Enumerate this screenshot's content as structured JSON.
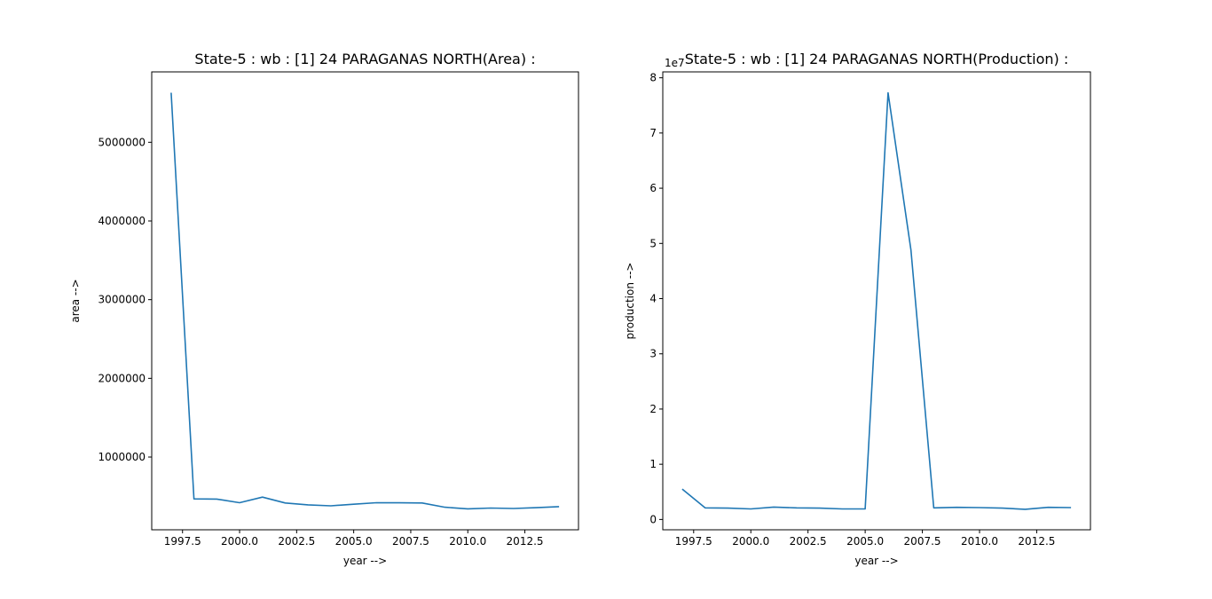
{
  "chart_data": [
    {
      "type": "line",
      "title": "State-5 : wb : [1] 24 PARAGANAS NORTH(Area) :",
      "xlabel": "year -->",
      "ylabel": "area -->",
      "x": [
        1997,
        1998,
        1999,
        2000,
        2001,
        2002,
        2003,
        2004,
        2005,
        2006,
        2007,
        2008,
        2009,
        2010,
        2011,
        2012,
        2013,
        2014
      ],
      "values": [
        5630000,
        468000,
        466000,
        420000,
        490000,
        416000,
        392000,
        380000,
        400000,
        420000,
        418000,
        416000,
        362000,
        342000,
        352000,
        346000,
        356000,
        370000
      ],
      "xlim": [
        1996.15,
        2014.85
      ],
      "ylim": [
        75500,
        5894500
      ],
      "xticks": [
        1997.5,
        2000,
        2002.5,
        2005,
        2007.5,
        2010,
        2012.5
      ],
      "xtick_labels": [
        "1997.5",
        "2000.0",
        "2002.5",
        "2005.0",
        "2007.5",
        "2010.0",
        "2012.5"
      ],
      "yticks": [
        1000000,
        2000000,
        3000000,
        4000000,
        5000000
      ],
      "ytick_labels": [
        "1000000",
        "2000000",
        "3000000",
        "4000000",
        "5000000"
      ],
      "offset_label": "",
      "color": "#1f77b4",
      "grid": false
    },
    {
      "type": "line",
      "title": "State-5 : wb : [1] 24 PARAGANAS NORTH(Production) :",
      "xlabel": "year -->",
      "ylabel": "production -->",
      "x": [
        1997,
        1998,
        1999,
        2000,
        2001,
        2002,
        2003,
        2004,
        2005,
        2006,
        2007,
        2008,
        2009,
        2010,
        2011,
        2012,
        2013,
        2014
      ],
      "values": [
        5500000,
        2100000,
        2050000,
        1900000,
        2250000,
        2100000,
        2050000,
        1900000,
        1920000,
        77300000,
        48800000,
        2100000,
        2200000,
        2150000,
        2050000,
        1850000,
        2200000,
        2150000
      ],
      "xlim": [
        1996.15,
        2014.85
      ],
      "ylim": [
        -1870000,
        81070000
      ],
      "xticks": [
        1997.5,
        2000,
        2002.5,
        2005,
        2007.5,
        2010,
        2012.5
      ],
      "xtick_labels": [
        "1997.5",
        "2000.0",
        "2002.5",
        "2005.0",
        "2007.5",
        "2010.0",
        "2012.5"
      ],
      "yticks": [
        0,
        10000000,
        20000000,
        30000000,
        40000000,
        50000000,
        60000000,
        70000000,
        80000000
      ],
      "ytick_labels": [
        "0",
        "1",
        "2",
        "3",
        "4",
        "5",
        "6",
        "7",
        "8"
      ],
      "offset_label": "1e7",
      "color": "#1f77b4",
      "grid": false
    }
  ]
}
